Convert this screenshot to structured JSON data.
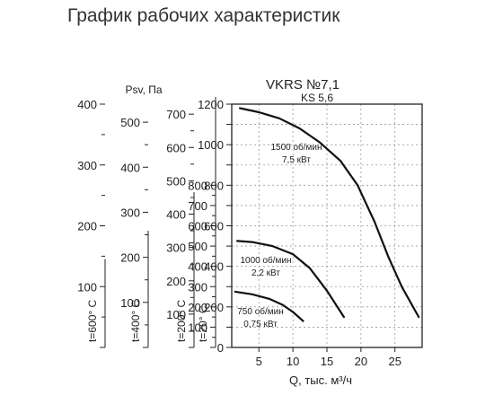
{
  "page": {
    "heading": "График рабочих характеристик"
  },
  "chart_data": {
    "type": "line",
    "title": "VKRS №7,1",
    "subtitle": "KS 5,6",
    "xlabel": "Q, тыс. м³/ч",
    "ylabel": "Psv, Па",
    "xlim": [
      1,
      29
    ],
    "ylim": [
      0,
      1200
    ],
    "x_ticks": [
      5,
      10,
      15,
      20,
      25
    ],
    "y_ticks": [
      0,
      100,
      200,
      300,
      400,
      500,
      600,
      700,
      800,
      900,
      1000,
      1100,
      1200
    ],
    "y_tick_labels": [
      "0",
      "",
      "200",
      "",
      "400",
      "",
      "600",
      "",
      "800",
      "",
      "1000",
      "",
      "1200"
    ],
    "grid": true,
    "temperature_scales": [
      {
        "label": "t=600° C",
        "max": 400,
        "ticks": [
          "0",
          "100",
          "200",
          "300",
          "400"
        ]
      },
      {
        "label": "t=400° C",
        "max": 540,
        "ticks": [
          "0",
          "100",
          "200",
          "300",
          "400",
          "500"
        ]
      },
      {
        "label": "t=200° C",
        "max": 730,
        "ticks": [
          "0",
          "100",
          "200",
          "300",
          "400",
          "500",
          "600",
          "700"
        ]
      },
      {
        "label": "t=20° C",
        "max": 1200,
        "ticks": [
          "0",
          "100",
          "200",
          "300",
          "400",
          "500",
          "600",
          "700",
          "800"
        ]
      }
    ],
    "series": [
      {
        "name": "1500 об/мин 7,5 кВт",
        "line1": "1500 об/мин",
        "line2": "7,5 кВт",
        "x": [
          2.2,
          5,
          8,
          11,
          14,
          17,
          19.5,
          22,
          24,
          26,
          28.5
        ],
        "y": [
          1180,
          1160,
          1130,
          1080,
          1010,
          920,
          800,
          620,
          450,
          300,
          150
        ]
      },
      {
        "name": "1000 об/мин 2,2 кВт",
        "line1": "1000 об/мин",
        "line2": "2,2 кВт",
        "x": [
          1.8,
          4,
          7,
          10,
          12.5,
          15,
          17.5
        ],
        "y": [
          525,
          520,
          500,
          460,
          390,
          280,
          150
        ]
      },
      {
        "name": "750 об/мин 0,75 кВт",
        "line1": "750 об/мин",
        "line2": "0,75 кВт",
        "x": [
          1.5,
          4,
          6.5,
          8.5,
          10,
          11.5
        ],
        "y": [
          275,
          262,
          240,
          210,
          175,
          130
        ]
      }
    ]
  }
}
